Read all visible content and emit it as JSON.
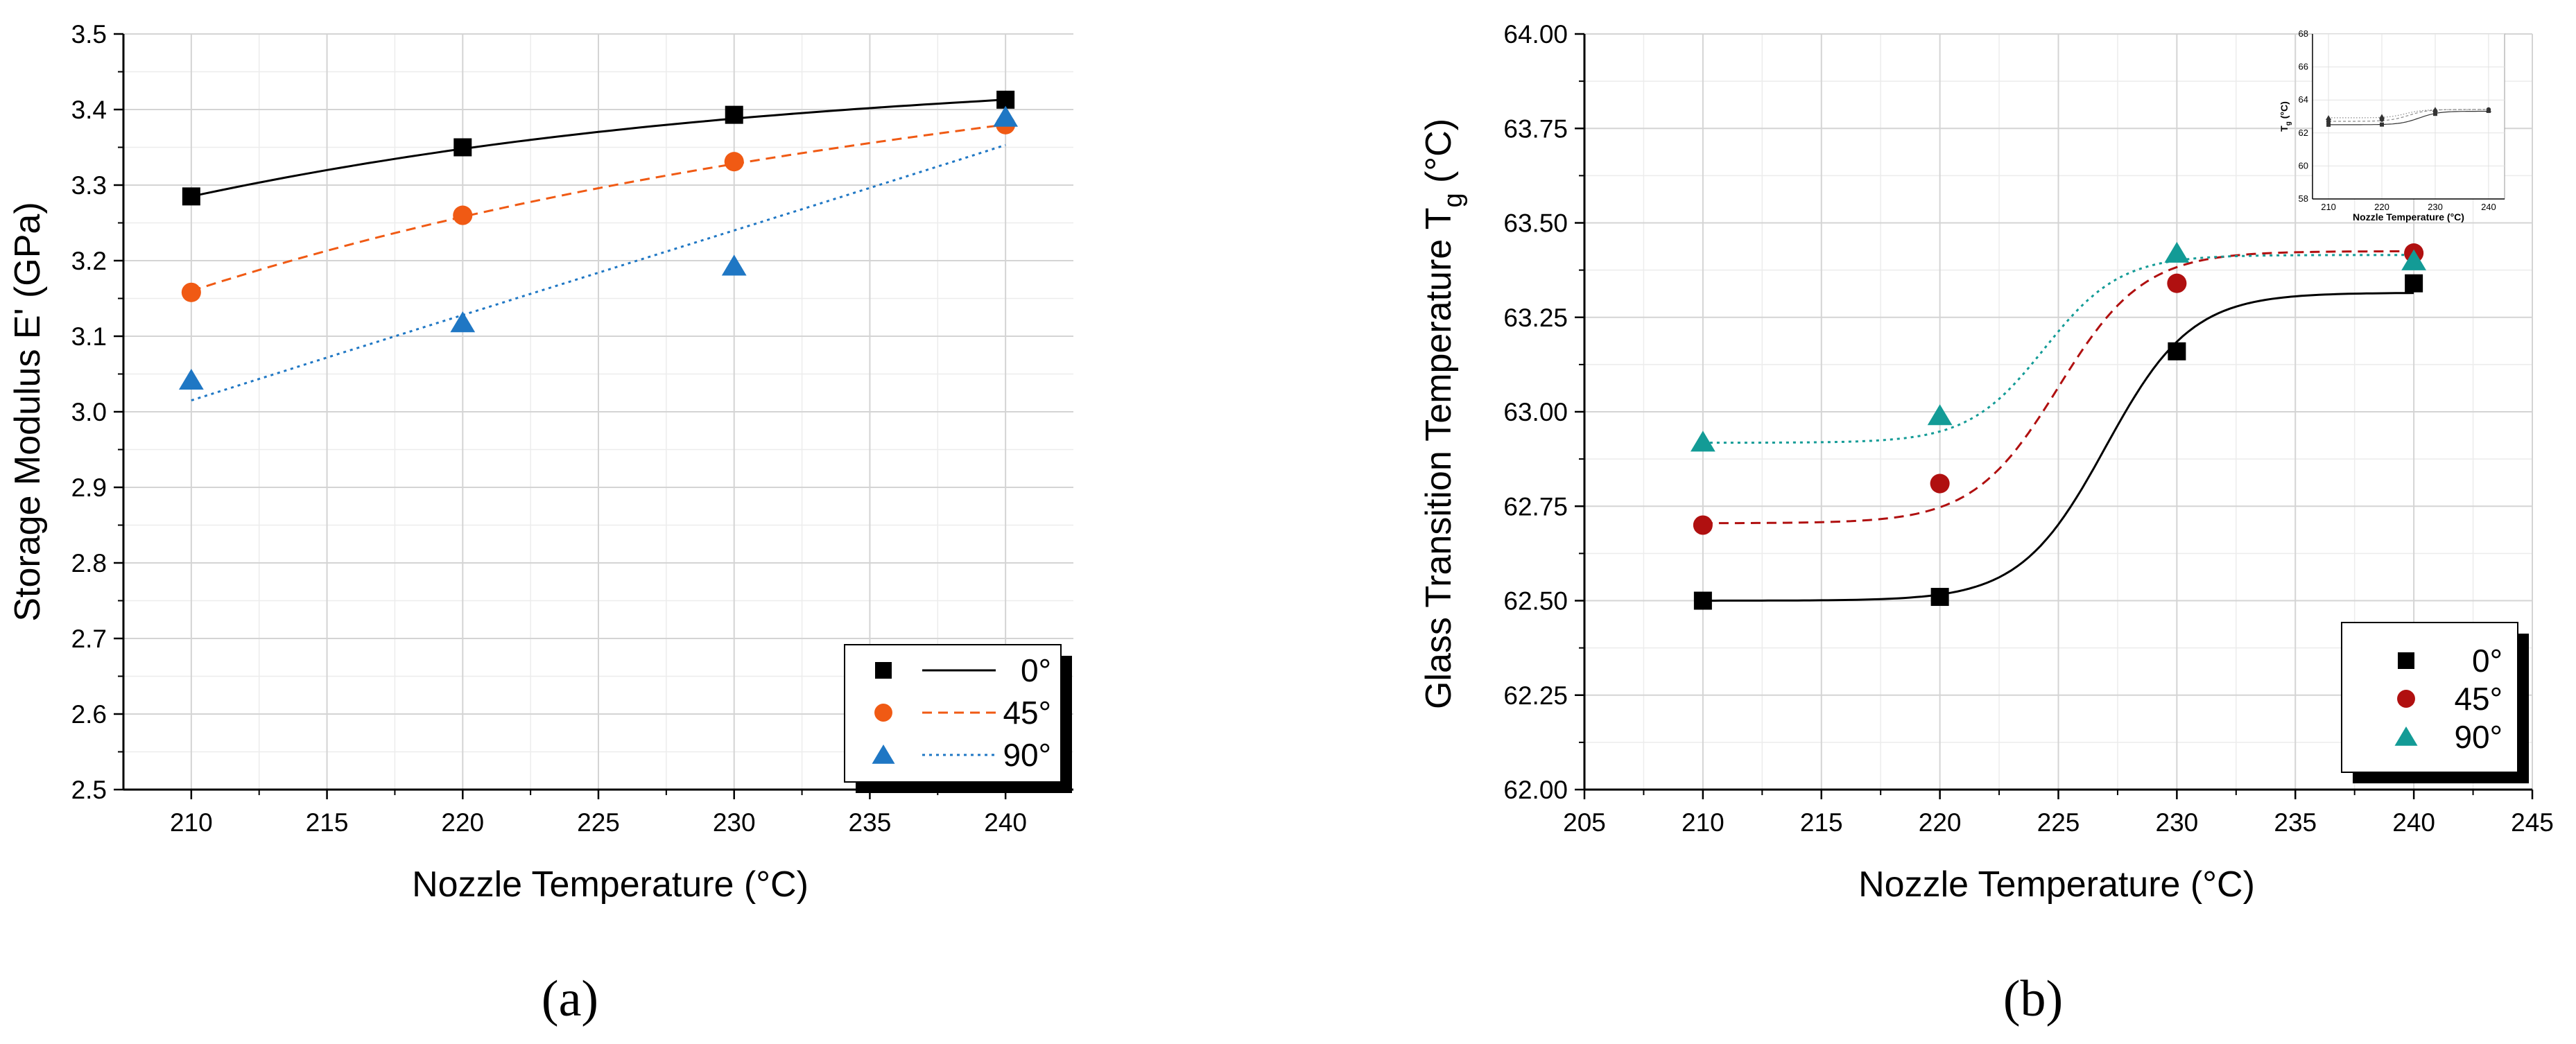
{
  "chart_data": [
    {
      "type": "line",
      "panel_label": "(a)",
      "title": "",
      "xlabel": "Nozzle Temperature (°C)",
      "ylabel": "Storage Modulus E' (GPa)",
      "xlim": [
        207.5,
        242.5
      ],
      "ylim": [
        2.5,
        3.5
      ],
      "xticks": [
        "210",
        "215",
        "220",
        "225",
        "230",
        "235",
        "240"
      ],
      "yticks": [
        "2.5",
        "2.6",
        "2.7",
        "2.8",
        "2.9",
        "3.0",
        "3.1",
        "3.2",
        "3.3",
        "3.4",
        "3.5"
      ],
      "grid": true,
      "legend_position": "bottom-right",
      "x": [
        210,
        220,
        230,
        240
      ],
      "series": [
        {
          "name": "0°",
          "marker": "square",
          "line": "solid",
          "color": "#000000",
          "values": [
            3.285,
            3.35,
            3.393,
            3.413
          ],
          "fit": [
            3.285,
            3.348,
            3.388,
            3.413
          ]
        },
        {
          "name": "45°",
          "marker": "circle",
          "line": "dashed",
          "color": "#F05A14",
          "values": [
            3.158,
            3.26,
            3.331,
            3.38
          ],
          "fit": [
            3.16,
            3.258,
            3.328,
            3.38
          ]
        },
        {
          "name": "90°",
          "marker": "triangle",
          "line": "dotted",
          "color": "#1F77C4",
          "values": [
            3.042,
            3.118,
            3.193,
            3.39
          ],
          "fit": [
            3.015,
            3.128,
            3.24,
            3.353
          ]
        }
      ]
    },
    {
      "type": "scatter",
      "panel_label": "(b)",
      "title": "",
      "xlabel": "Nozzle Temperature (°C)",
      "ylabel": "Glass Transition Temperature T",
      "ylabel_sub": "g",
      "ylabel_unit": " (°C)",
      "xlim": [
        205,
        245
      ],
      "ylim": [
        62.0,
        64.0
      ],
      "xticks": [
        "205",
        "210",
        "215",
        "220",
        "225",
        "230",
        "235",
        "240",
        "245"
      ],
      "yticks": [
        "62.00",
        "62.25",
        "62.50",
        "62.75",
        "63.00",
        "63.25",
        "63.50",
        "63.75",
        "64.00"
      ],
      "grid": true,
      "legend_position": "bottom-right",
      "x": [
        210,
        220,
        230,
        240
      ],
      "series": [
        {
          "name": "0°",
          "marker": "square",
          "line": "solid",
          "color": "#000000",
          "values": [
            62.5,
            62.51,
            63.16,
            63.34
          ],
          "fit": {
            "low": 62.5,
            "high": 63.315,
            "x0": 227.0,
            "dx": 1.8
          }
        },
        {
          "name": "45°",
          "marker": "circle",
          "line": "dashed",
          "color": "#B01010",
          "values": [
            62.7,
            62.81,
            63.34,
            63.42
          ],
          "fit": {
            "low": 62.705,
            "high": 63.425,
            "x0": 225.0,
            "dx": 1.8
          }
        },
        {
          "name": "90°",
          "marker": "triangle",
          "line": "dotted",
          "color": "#139B96",
          "values": [
            62.92,
            62.99,
            63.42,
            63.4
          ],
          "fit": {
            "low": 62.918,
            "high": 63.415,
            "x0": 224.4,
            "dx": 1.6
          }
        }
      ],
      "inset": {
        "xlabel": "Nozzle Temperature (°C)",
        "ylabel": "T",
        "ylabel_sub": "g",
        "ylabel_unit": " (°C)",
        "xlim": [
          207,
          243
        ],
        "ylim": [
          58,
          68
        ],
        "xticks": [
          "210",
          "220",
          "230",
          "240"
        ],
        "yticks": [
          "58",
          "60",
          "62",
          "64",
          "66",
          "68"
        ]
      }
    }
  ]
}
